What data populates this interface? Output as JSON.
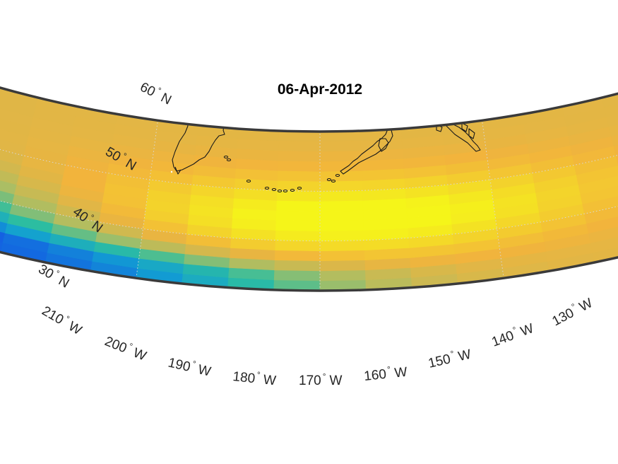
{
  "title": "06-Apr-2012",
  "latitude_labels": [
    {
      "value": 60,
      "deg": "°",
      "hemi": "N"
    },
    {
      "value": 50,
      "deg": "°",
      "hemi": "N"
    },
    {
      "value": 40,
      "deg": "°",
      "hemi": "N"
    },
    {
      "value": 30,
      "deg": "°",
      "hemi": "N"
    }
  ],
  "longitude_labels": [
    {
      "value": 210,
      "deg": "°",
      "hemi": "W"
    },
    {
      "value": 200,
      "deg": "°",
      "hemi": "W"
    },
    {
      "value": 190,
      "deg": "°",
      "hemi": "W"
    },
    {
      "value": 180,
      "deg": "°",
      "hemi": "W"
    },
    {
      "value": 170,
      "deg": "°",
      "hemi": "W"
    },
    {
      "value": 160,
      "deg": "°",
      "hemi": "W"
    },
    {
      "value": 150,
      "deg": "°",
      "hemi": "W"
    },
    {
      "value": 140,
      "deg": "°",
      "hemi": "W"
    },
    {
      "value": 130,
      "deg": "°",
      "hemi": "W"
    }
  ],
  "map": {
    "projection": "conic",
    "lat_range": [
      30,
      62
    ],
    "lon_range": [
      -210,
      -130
    ],
    "colormap": "parula",
    "grid": true,
    "coastlines": true,
    "field_peak": {
      "lat": 45,
      "lon": -170
    },
    "field_low": {
      "lat": 38,
      "lon": -205
    }
  },
  "colors": {
    "frame": "#3a3a3a",
    "coastline": "#1a1a1a",
    "grid": "#d8d8d8",
    "high": "#f5f51a",
    "mid": "#f2b43a",
    "low": "#1459e0"
  }
}
